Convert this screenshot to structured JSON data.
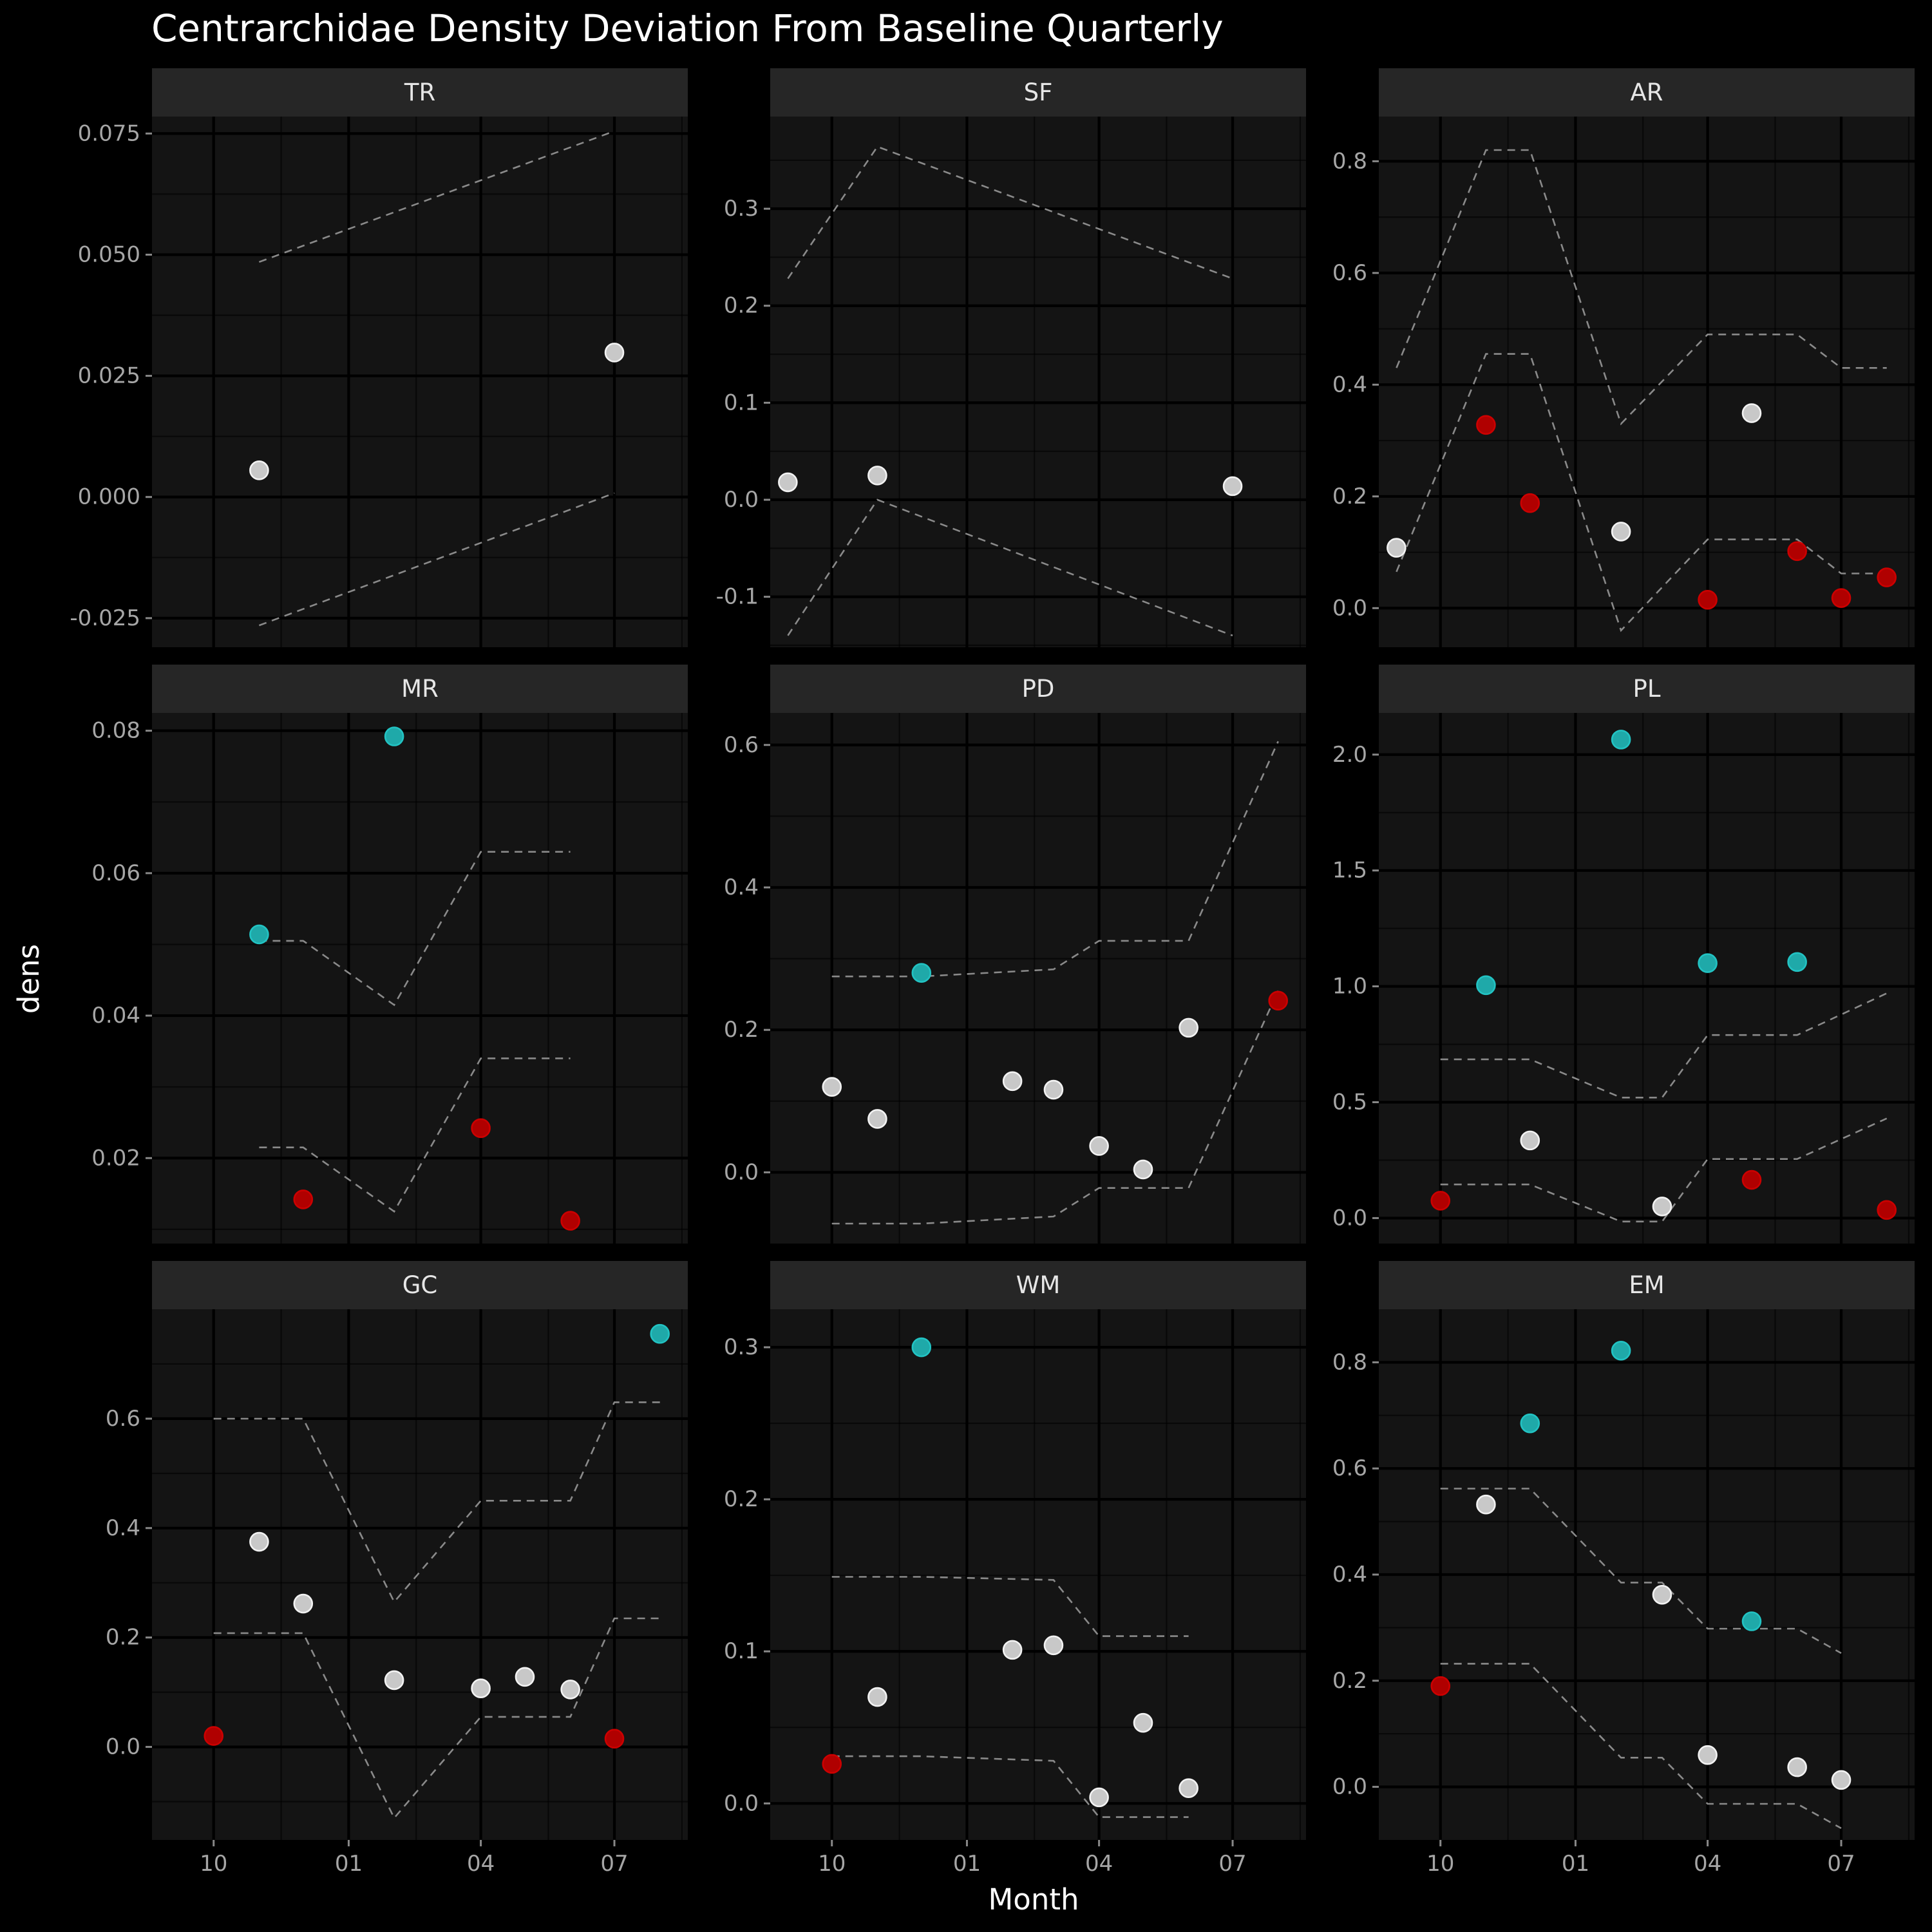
{
  "chart_data": {
    "type": "scatter",
    "title": "Centrarchidae Density Deviation From Baseline Quarterly",
    "xlabel": "Month",
    "ylabel": "dens",
    "x_ticks": [
      {
        "date": "2020-10-01",
        "label": "10"
      },
      {
        "date": "2021-01-01",
        "label": "01"
      },
      {
        "date": "2021-04-01",
        "label": "04"
      },
      {
        "date": "2021-07-01",
        "label": "07"
      }
    ],
    "xlim": [
      "2020-08-20",
      "2021-08-20"
    ],
    "colors": {
      "normal": "#d9d9d9",
      "high": "#22c3c3",
      "low": "#cc0000"
    },
    "panels": [
      {
        "name": "TR",
        "ylim": [
          -0.031,
          0.0785
        ],
        "y_ticks": [
          -0.025,
          0.0,
          0.025,
          0.05,
          0.075
        ],
        "y_tick_labels": [
          "-0.025",
          "0.000",
          "0.025",
          "0.050",
          "0.075"
        ],
        "upper": [
          [
            "2020-11-01",
            0.0485
          ],
          [
            "2021-07-01",
            0.0755
          ]
        ],
        "lower": [
          [
            "2020-11-01",
            -0.0265
          ],
          [
            "2021-07-01",
            0.0008
          ]
        ],
        "points": [
          {
            "x": "2020-11-01",
            "y": 0.0055,
            "status": "normal"
          },
          {
            "x": "2021-07-01",
            "y": 0.0298,
            "status": "normal"
          }
        ]
      },
      {
        "name": "SF",
        "ylim": [
          -0.152,
          0.395
        ],
        "y_ticks": [
          -0.1,
          0.0,
          0.1,
          0.2,
          0.3
        ],
        "y_tick_labels": [
          "-0.1",
          "0.0",
          "0.1",
          "0.2",
          "0.3"
        ],
        "upper": [
          [
            "2020-09-01",
            0.228
          ],
          [
            "2020-11-01",
            0.364
          ],
          [
            "2021-07-01",
            0.228
          ]
        ],
        "lower": [
          [
            "2020-09-01",
            -0.14
          ],
          [
            "2020-11-01",
            0.0
          ],
          [
            "2021-07-01",
            -0.14
          ]
        ],
        "points": [
          {
            "x": "2020-09-01",
            "y": 0.018,
            "status": "normal"
          },
          {
            "x": "2020-11-01",
            "y": 0.025,
            "status": "normal"
          },
          {
            "x": "2021-07-01",
            "y": 0.014,
            "status": "normal"
          }
        ]
      },
      {
        "name": "AR",
        "ylim": [
          -0.07,
          0.88
        ],
        "y_ticks": [
          0.0,
          0.2,
          0.4,
          0.6,
          0.8
        ],
        "y_tick_labels": [
          "0.0",
          "0.2",
          "0.4",
          "0.6",
          "0.8"
        ],
        "upper": [
          [
            "2020-09-01",
            0.43
          ],
          [
            "2020-11-01",
            0.82
          ],
          [
            "2020-12-01",
            0.82
          ],
          [
            "2021-02-01",
            0.33
          ],
          [
            "2021-04-01",
            0.49
          ],
          [
            "2021-06-01",
            0.49
          ],
          [
            "2021-07-01",
            0.43
          ],
          [
            "2021-08-01",
            0.43
          ]
        ],
        "lower": [
          [
            "2020-09-01",
            0.065
          ],
          [
            "2020-11-01",
            0.455
          ],
          [
            "2020-12-01",
            0.455
          ],
          [
            "2021-02-01",
            -0.04
          ],
          [
            "2021-04-01",
            0.123
          ],
          [
            "2021-06-01",
            0.123
          ],
          [
            "2021-07-01",
            0.062
          ],
          [
            "2021-08-01",
            0.062
          ]
        ],
        "points": [
          {
            "x": "2020-09-01",
            "y": 0.108,
            "status": "normal"
          },
          {
            "x": "2020-11-01",
            "y": 0.328,
            "status": "low"
          },
          {
            "x": "2020-12-01",
            "y": 0.188,
            "status": "low"
          },
          {
            "x": "2021-02-01",
            "y": 0.137,
            "status": "normal"
          },
          {
            "x": "2021-04-01",
            "y": 0.015,
            "status": "low"
          },
          {
            "x": "2021-05-01",
            "y": 0.349,
            "status": "normal"
          },
          {
            "x": "2021-06-01",
            "y": 0.102,
            "status": "low"
          },
          {
            "x": "2021-07-01",
            "y": 0.018,
            "status": "low"
          },
          {
            "x": "2021-08-01",
            "y": 0.055,
            "status": "low"
          }
        ]
      },
      {
        "name": "MR",
        "ylim": [
          0.008,
          0.0825
        ],
        "y_ticks": [
          0.02,
          0.04,
          0.06,
          0.08
        ],
        "y_tick_labels": [
          "0.02",
          "0.04",
          "0.06",
          "0.08"
        ],
        "upper": [
          [
            "2020-11-01",
            0.0505
          ],
          [
            "2020-12-01",
            0.0505
          ],
          [
            "2021-02-01",
            0.0415
          ],
          [
            "2021-04-01",
            0.063
          ],
          [
            "2021-06-01",
            0.063
          ]
        ],
        "lower": [
          [
            "2020-11-01",
            0.0215
          ],
          [
            "2020-12-01",
            0.0215
          ],
          [
            "2021-02-01",
            0.0125
          ],
          [
            "2021-04-01",
            0.034
          ],
          [
            "2021-06-01",
            0.034
          ]
        ],
        "points": [
          {
            "x": "2020-11-01",
            "y": 0.0514,
            "status": "high"
          },
          {
            "x": "2020-12-01",
            "y": 0.0142,
            "status": "low"
          },
          {
            "x": "2021-02-01",
            "y": 0.0792,
            "status": "high"
          },
          {
            "x": "2021-04-01",
            "y": 0.0242,
            "status": "low"
          },
          {
            "x": "2021-06-01",
            "y": 0.0112,
            "status": "low"
          }
        ]
      },
      {
        "name": "PD",
        "ylim": [
          -0.1,
          0.645
        ],
        "y_ticks": [
          0.0,
          0.2,
          0.4,
          0.6
        ],
        "y_tick_labels": [
          "0.0",
          "0.2",
          "0.4",
          "0.6"
        ],
        "upper": [
          [
            "2020-10-01",
            0.275
          ],
          [
            "2020-12-01",
            0.275
          ],
          [
            "2021-03-01",
            0.285
          ],
          [
            "2021-04-01",
            0.325
          ],
          [
            "2021-06-01",
            0.325
          ],
          [
            "2021-08-01",
            0.605
          ]
        ],
        "lower": [
          [
            "2020-10-01",
            -0.072
          ],
          [
            "2020-12-01",
            -0.072
          ],
          [
            "2021-03-01",
            -0.062
          ],
          [
            "2021-04-01",
            -0.022
          ],
          [
            "2021-06-01",
            -0.022
          ],
          [
            "2021-08-01",
            0.255
          ]
        ],
        "points": [
          {
            "x": "2020-10-01",
            "y": 0.12,
            "status": "normal"
          },
          {
            "x": "2020-11-01",
            "y": 0.075,
            "status": "normal"
          },
          {
            "x": "2020-12-01",
            "y": 0.28,
            "status": "high"
          },
          {
            "x": "2021-02-01",
            "y": 0.128,
            "status": "normal"
          },
          {
            "x": "2021-03-01",
            "y": 0.116,
            "status": "normal"
          },
          {
            "x": "2021-04-01",
            "y": 0.037,
            "status": "normal"
          },
          {
            "x": "2021-05-01",
            "y": 0.004,
            "status": "normal"
          },
          {
            "x": "2021-06-01",
            "y": 0.203,
            "status": "normal"
          },
          {
            "x": "2021-08-01",
            "y": 0.241,
            "status": "low"
          }
        ]
      },
      {
        "name": "PL",
        "ylim": [
          -0.11,
          2.18
        ],
        "y_ticks": [
          0.0,
          0.5,
          1.0,
          1.5,
          2.0
        ],
        "y_tick_labels": [
          "0.0",
          "0.5",
          "1.0",
          "1.5",
          "2.0"
        ],
        "upper": [
          [
            "2020-10-01",
            0.685
          ],
          [
            "2020-12-01",
            0.685
          ],
          [
            "2021-02-01",
            0.52
          ],
          [
            "2021-03-01",
            0.52
          ],
          [
            "2021-04-01",
            0.79
          ],
          [
            "2021-06-01",
            0.79
          ],
          [
            "2021-08-01",
            0.97
          ]
        ],
        "lower": [
          [
            "2020-10-01",
            0.145
          ],
          [
            "2020-12-01",
            0.145
          ],
          [
            "2021-02-01",
            -0.015
          ],
          [
            "2021-03-01",
            -0.015
          ],
          [
            "2021-04-01",
            0.255
          ],
          [
            "2021-06-01",
            0.255
          ],
          [
            "2021-08-01",
            0.43
          ]
        ],
        "points": [
          {
            "x": "2020-10-01",
            "y": 0.075,
            "status": "low"
          },
          {
            "x": "2020-11-01",
            "y": 1.005,
            "status": "high"
          },
          {
            "x": "2020-12-01",
            "y": 0.335,
            "status": "normal"
          },
          {
            "x": "2021-02-01",
            "y": 2.065,
            "status": "high"
          },
          {
            "x": "2021-03-01",
            "y": 0.05,
            "status": "normal"
          },
          {
            "x": "2021-04-01",
            "y": 1.1,
            "status": "high"
          },
          {
            "x": "2021-05-01",
            "y": 0.165,
            "status": "low"
          },
          {
            "x": "2021-06-01",
            "y": 1.105,
            "status": "high"
          },
          {
            "x": "2021-08-01",
            "y": 0.035,
            "status": "low"
          }
        ]
      },
      {
        "name": "GC",
        "ylim": [
          -0.17,
          0.8
        ],
        "y_ticks": [
          0.0,
          0.2,
          0.4,
          0.6
        ],
        "y_tick_labels": [
          "0.0",
          "0.2",
          "0.4",
          "0.6"
        ],
        "upper": [
          [
            "2020-10-01",
            0.6
          ],
          [
            "2020-12-01",
            0.6
          ],
          [
            "2021-02-01",
            0.265
          ],
          [
            "2021-04-01",
            0.45
          ],
          [
            "2021-06-01",
            0.45
          ],
          [
            "2021-07-01",
            0.63
          ],
          [
            "2021-08-01",
            0.63
          ]
        ],
        "lower": [
          [
            "2020-10-01",
            0.208
          ],
          [
            "2020-12-01",
            0.208
          ],
          [
            "2021-02-01",
            -0.13
          ],
          [
            "2021-04-01",
            0.055
          ],
          [
            "2021-06-01",
            0.055
          ],
          [
            "2021-07-01",
            0.235
          ],
          [
            "2021-08-01",
            0.235
          ]
        ],
        "points": [
          {
            "x": "2020-10-01",
            "y": 0.02,
            "status": "low"
          },
          {
            "x": "2020-11-01",
            "y": 0.375,
            "status": "normal"
          },
          {
            "x": "2020-12-01",
            "y": 0.262,
            "status": "normal"
          },
          {
            "x": "2021-02-01",
            "y": 0.122,
            "status": "normal"
          },
          {
            "x": "2021-04-01",
            "y": 0.107,
            "status": "normal"
          },
          {
            "x": "2021-05-01",
            "y": 0.128,
            "status": "normal"
          },
          {
            "x": "2021-06-01",
            "y": 0.105,
            "status": "normal"
          },
          {
            "x": "2021-07-01",
            "y": 0.015,
            "status": "low"
          },
          {
            "x": "2021-08-01",
            "y": 0.755,
            "status": "high"
          }
        ]
      },
      {
        "name": "WM",
        "ylim": [
          -0.024,
          0.325
        ],
        "y_ticks": [
          0.0,
          0.1,
          0.2,
          0.3
        ],
        "y_tick_labels": [
          "0.0",
          "0.1",
          "0.2",
          "0.3"
        ],
        "upper": [
          [
            "2020-10-01",
            0.149
          ],
          [
            "2020-12-01",
            0.149
          ],
          [
            "2021-03-01",
            0.147
          ],
          [
            "2021-04-01",
            0.11
          ],
          [
            "2021-06-01",
            0.11
          ]
        ],
        "lower": [
          [
            "2020-10-01",
            0.031
          ],
          [
            "2020-12-01",
            0.031
          ],
          [
            "2021-03-01",
            0.028
          ],
          [
            "2021-04-01",
            -0.009
          ],
          [
            "2021-06-01",
            -0.009
          ]
        ],
        "points": [
          {
            "x": "2020-10-01",
            "y": 0.026,
            "status": "low"
          },
          {
            "x": "2020-11-01",
            "y": 0.07,
            "status": "normal"
          },
          {
            "x": "2020-12-01",
            "y": 0.3,
            "status": "high"
          },
          {
            "x": "2021-02-01",
            "y": 0.101,
            "status": "normal"
          },
          {
            "x": "2021-03-01",
            "y": 0.104,
            "status": "normal"
          },
          {
            "x": "2021-04-01",
            "y": 0.004,
            "status": "normal"
          },
          {
            "x": "2021-05-01",
            "y": 0.053,
            "status": "normal"
          },
          {
            "x": "2021-06-01",
            "y": 0.01,
            "status": "normal"
          }
        ]
      },
      {
        "name": "EM",
        "ylim": [
          -0.1,
          0.9
        ],
        "y_ticks": [
          0.0,
          0.2,
          0.4,
          0.6,
          0.8
        ],
        "y_tick_labels": [
          "0.0",
          "0.2",
          "0.4",
          "0.6",
          "0.8"
        ],
        "upper": [
          [
            "2020-10-01",
            0.562
          ],
          [
            "2020-12-01",
            0.562
          ],
          [
            "2021-02-01",
            0.385
          ],
          [
            "2021-03-01",
            0.385
          ],
          [
            "2021-04-01",
            0.298
          ],
          [
            "2021-06-01",
            0.298
          ],
          [
            "2021-07-01",
            0.252
          ]
        ],
        "lower": [
          [
            "2020-10-01",
            0.232
          ],
          [
            "2020-12-01",
            0.232
          ],
          [
            "2021-02-01",
            0.055
          ],
          [
            "2021-03-01",
            0.055
          ],
          [
            "2021-04-01",
            -0.032
          ],
          [
            "2021-06-01",
            -0.032
          ],
          [
            "2021-07-01",
            -0.078
          ]
        ],
        "points": [
          {
            "x": "2020-10-01",
            "y": 0.19,
            "status": "low"
          },
          {
            "x": "2020-11-01",
            "y": 0.532,
            "status": "normal"
          },
          {
            "x": "2020-12-01",
            "y": 0.685,
            "status": "high"
          },
          {
            "x": "2021-02-01",
            "y": 0.822,
            "status": "high"
          },
          {
            "x": "2021-03-01",
            "y": 0.362,
            "status": "normal"
          },
          {
            "x": "2021-04-01",
            "y": 0.06,
            "status": "normal"
          },
          {
            "x": "2021-05-01",
            "y": 0.312,
            "status": "high"
          },
          {
            "x": "2021-06-01",
            "y": 0.037,
            "status": "normal"
          },
          {
            "x": "2021-07-01",
            "y": 0.013,
            "status": "normal"
          }
        ]
      }
    ]
  }
}
